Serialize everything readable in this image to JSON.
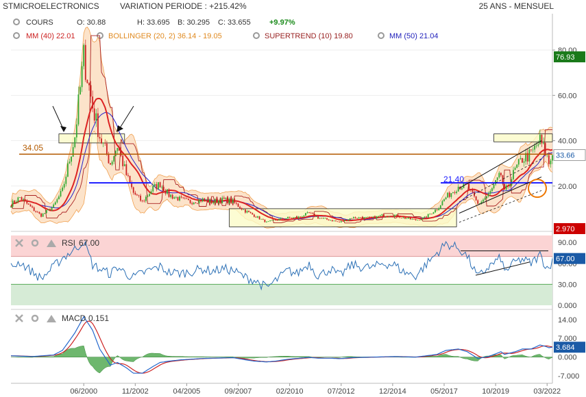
{
  "header": {
    "symbol": "STMICROELECTRONICS",
    "variation": "VARIATION PERIODE : +215.42%",
    "period": "25 ANS - MENSUEL"
  },
  "legend": {
    "cours_label": "COURS",
    "o": "O: 30.88",
    "h": "H: 33.695",
    "l": "B: 30.295",
    "c": "C: 33.655",
    "chg": "+9.97%",
    "mm40": "MM (40) 22.01",
    "bollinger": "BOLLINGER (20, 2) 36.14 - 19.05",
    "supertrend": "SUPERTREND (10) 19.80",
    "mm50": "MM (50) 21.04"
  },
  "rsi_label": {
    "name": "RSI",
    "value": "67.00"
  },
  "macd_label": {
    "name": "MACD",
    "value": "0.151"
  },
  "annotations": {
    "level_34": "34.05",
    "level_21": "21.40"
  },
  "colors": {
    "up": "#33aa33",
    "down": "#cc2222",
    "mm40": "#dd2222",
    "mm50": "#2222cc",
    "supertrend": "#aa2222",
    "bollinger_fill": "#fbd9b8",
    "bollinger_line": "#f0a050",
    "level_line": "#b35a00",
    "support_line": "#1a1aff",
    "rsi_line": "#2a6fb5",
    "macd_line": "#2266cc",
    "signal_line": "#cc2222",
    "hist": "#55aa55",
    "last_price_bg": "#1a7a1a",
    "low_tag_bg": "#cc0000",
    "rsi_tag_bg": "#1a5aa6",
    "macd_tag_bg": "#1a5aa6",
    "rect_fill": "#fbfbc8",
    "rect_stroke": "#222222",
    "orange_circle": "#ee7700"
  },
  "chart_data": [
    {
      "type": "candlestick",
      "yticks": [
        "80.00",
        "60.00",
        "40.00",
        "20.00"
      ],
      "ylim": [
        0,
        90
      ],
      "xticks": [
        "06/2000",
        "11/2002",
        "04/2005",
        "09/2007",
        "02/2010",
        "07/2012",
        "12/2014",
        "05/2017",
        "10/2019",
        "03/2022"
      ],
      "x_range": [
        "01/1997",
        "06/2022"
      ],
      "last_price": "76.93",
      "current_price": "33.66",
      "low_tag": "2.970",
      "anchors": [
        [
          "01/1997",
          12
        ],
        [
          "06/1997",
          15
        ],
        [
          "01/1998",
          10
        ],
        [
          "06/1998",
          7
        ],
        [
          "01/1999",
          11
        ],
        [
          "06/1999",
          18
        ],
        [
          "01/2000",
          42
        ],
        [
          "06/2000",
          77
        ],
        [
          "11/2000",
          55
        ],
        [
          "03/2001",
          42
        ],
        [
          "09/2001",
          30
        ],
        [
          "01/2002",
          38
        ],
        [
          "06/2002",
          25
        ],
        [
          "10/2002",
          17
        ],
        [
          "03/2003",
          13
        ],
        [
          "09/2003",
          19
        ],
        [
          "01/2004",
          21
        ],
        [
          "06/2004",
          16
        ],
        [
          "01/2005",
          14
        ],
        [
          "06/2005",
          13
        ],
        [
          "01/2006",
          14
        ],
        [
          "06/2006",
          13
        ],
        [
          "01/2007",
          14
        ],
        [
          "06/2007",
          13
        ],
        [
          "01/2008",
          9
        ],
        [
          "06/2008",
          7
        ],
        [
          "01/2009",
          4
        ],
        [
          "06/2009",
          5
        ],
        [
          "01/2010",
          6
        ],
        [
          "06/2010",
          6
        ],
        [
          "01/2011",
          8
        ],
        [
          "06/2011",
          6
        ],
        [
          "01/2012",
          5
        ],
        [
          "06/2012",
          4
        ],
        [
          "01/2013",
          6
        ],
        [
          "06/2013",
          6
        ],
        [
          "01/2014",
          6
        ],
        [
          "06/2014",
          7
        ],
        [
          "01/2015",
          7
        ],
        [
          "06/2015",
          6
        ],
        [
          "01/2016",
          5
        ],
        [
          "06/2016",
          6
        ],
        [
          "01/2017",
          10
        ],
        [
          "06/2017",
          15
        ],
        [
          "01/2018",
          20
        ],
        [
          "06/2018",
          20
        ],
        [
          "12/2018",
          12
        ],
        [
          "06/2019",
          16
        ],
        [
          "01/2020",
          25
        ],
        [
          "03/2020",
          17
        ],
        [
          "09/2020",
          27
        ],
        [
          "01/2021",
          32
        ],
        [
          "06/2021",
          34
        ],
        [
          "11/2021",
          40
        ],
        [
          "02/2022",
          35
        ],
        [
          "04/2022",
          30
        ],
        [
          "06/2022",
          33.66
        ]
      ]
    },
    {
      "type": "line",
      "name": "RSI",
      "yticks": [
        "90.00",
        "60.00",
        "30.00",
        "0.000"
      ],
      "ylim": [
        0,
        100
      ],
      "last_value": "67.00",
      "anchors": [
        [
          "01/1997",
          55
        ],
        [
          "06/1997",
          62
        ],
        [
          "01/1998",
          48
        ],
        [
          "06/1998",
          38
        ],
        [
          "01/1999",
          55
        ],
        [
          "06/1999",
          68
        ],
        [
          "01/2000",
          80
        ],
        [
          "06/2000",
          92
        ],
        [
          "11/2000",
          58
        ],
        [
          "03/2001",
          52
        ],
        [
          "09/2001",
          45
        ],
        [
          "01/2002",
          55
        ],
        [
          "06/2002",
          45
        ],
        [
          "10/2002",
          40
        ],
        [
          "03/2003",
          46
        ],
        [
          "09/2003",
          52
        ],
        [
          "01/2004",
          55
        ],
        [
          "06/2004",
          47
        ],
        [
          "01/2005",
          46
        ],
        [
          "06/2005",
          48
        ],
        [
          "01/2006",
          52
        ],
        [
          "06/2006",
          49
        ],
        [
          "01/2007",
          52
        ],
        [
          "06/2007",
          50
        ],
        [
          "01/2008",
          40
        ],
        [
          "06/2008",
          36
        ],
        [
          "01/2009",
          25
        ],
        [
          "06/2009",
          35
        ],
        [
          "01/2010",
          50
        ],
        [
          "06/2010",
          45
        ],
        [
          "01/2011",
          60
        ],
        [
          "06/2011",
          42
        ],
        [
          "01/2012",
          52
        ],
        [
          "06/2012",
          42
        ],
        [
          "01/2013",
          58
        ],
        [
          "06/2013",
          55
        ],
        [
          "01/2014",
          54
        ],
        [
          "06/2014",
          60
        ],
        [
          "01/2015",
          58
        ],
        [
          "06/2015",
          48
        ],
        [
          "01/2016",
          42
        ],
        [
          "06/2016",
          56
        ],
        [
          "01/2017",
          75
        ],
        [
          "06/2017",
          88
        ],
        [
          "01/2018",
          82
        ],
        [
          "06/2018",
          70
        ],
        [
          "12/2018",
          40
        ],
        [
          "06/2019",
          55
        ],
        [
          "01/2020",
          68
        ],
        [
          "03/2020",
          48
        ],
        [
          "09/2020",
          62
        ],
        [
          "01/2021",
          66
        ],
        [
          "06/2021",
          60
        ],
        [
          "11/2021",
          72
        ],
        [
          "02/2022",
          58
        ],
        [
          "04/2022",
          52
        ],
        [
          "06/2022",
          67
        ]
      ]
    },
    {
      "type": "line+bar",
      "name": "MACD",
      "series": [
        {
          "name": "MACD"
        }
      ],
      "yticks": [
        "14.00",
        "7.000",
        "0.000",
        "-7.000"
      ],
      "ylim": [
        -9,
        17
      ],
      "last_value": "3.684",
      "anchors": [
        [
          "01/1997",
          0.5
        ],
        [
          "01/1998",
          0.2
        ],
        [
          "01/1999",
          0.8
        ],
        [
          "06/1999",
          2.5
        ],
        [
          "01/2000",
          9
        ],
        [
          "06/2000",
          15
        ],
        [
          "11/2000",
          10
        ],
        [
          "03/2001",
          3
        ],
        [
          "09/2001",
          -3
        ],
        [
          "01/2002",
          -2
        ],
        [
          "06/2002",
          -4
        ],
        [
          "10/2002",
          -6
        ],
        [
          "03/2003",
          -6
        ],
        [
          "09/2003",
          -3.5
        ],
        [
          "01/2004",
          -2
        ],
        [
          "06/2004",
          -1.5
        ],
        [
          "01/2005",
          -1
        ],
        [
          "01/2006",
          -0.5
        ],
        [
          "01/2007",
          -0.3
        ],
        [
          "06/2007",
          -0.2
        ],
        [
          "01/2008",
          -1
        ],
        [
          "06/2008",
          -1.5
        ],
        [
          "01/2009",
          -1.8
        ],
        [
          "06/2009",
          -1.5
        ],
        [
          "01/2010",
          -0.8
        ],
        [
          "01/2011",
          -0.1
        ],
        [
          "06/2011",
          -0.4
        ],
        [
          "01/2012",
          -0.4
        ],
        [
          "06/2012",
          -0.6
        ],
        [
          "01/2013",
          -0.2
        ],
        [
          "01/2014",
          0
        ],
        [
          "01/2015",
          0.2
        ],
        [
          "01/2016",
          0
        ],
        [
          "01/2017",
          1
        ],
        [
          "06/2017",
          2.5
        ],
        [
          "01/2018",
          3
        ],
        [
          "06/2018",
          2
        ],
        [
          "12/2018",
          -0.5
        ],
        [
          "06/2019",
          0.2
        ],
        [
          "01/2020",
          2
        ],
        [
          "03/2020",
          1
        ],
        [
          "09/2020",
          2
        ],
        [
          "01/2021",
          3
        ],
        [
          "06/2021",
          3
        ],
        [
          "11/2021",
          4.5
        ],
        [
          "02/2022",
          4
        ],
        [
          "04/2022",
          3.5
        ],
        [
          "06/2022",
          3.7
        ]
      ]
    }
  ]
}
